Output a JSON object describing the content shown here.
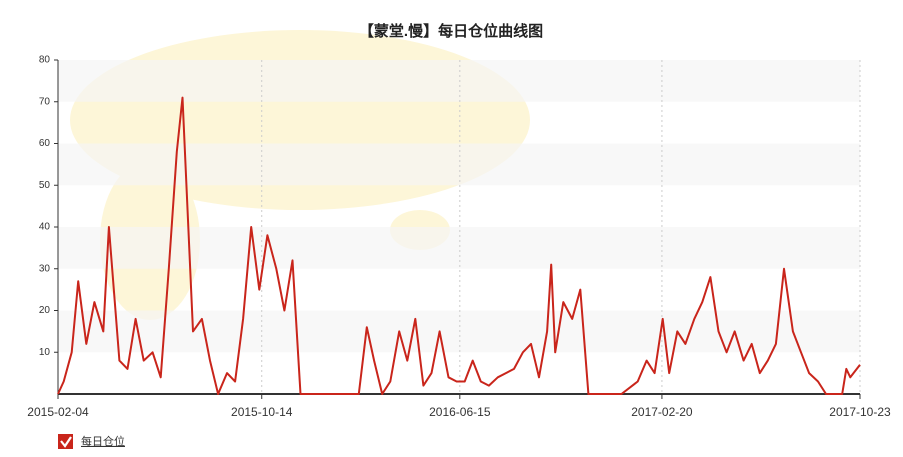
{
  "chart_data": {
    "type": "line",
    "title": "【蒙堂.慢】每日仓位曲线图",
    "x": [
      "2015-02-04",
      "2015-02-11",
      "2015-02-21",
      "2015-03-01",
      "2015-03-11",
      "2015-03-21",
      "2015-04-01",
      "2015-04-08",
      "2015-04-21",
      "2015-05-01",
      "2015-05-11",
      "2015-05-21",
      "2015-06-01",
      "2015-06-11",
      "2015-06-21",
      "2015-07-01",
      "2015-07-08",
      "2015-07-21",
      "2015-08-01",
      "2015-08-11",
      "2015-08-21",
      "2015-09-01",
      "2015-09-11",
      "2015-09-21",
      "2015-10-01",
      "2015-10-11",
      "2015-10-21",
      "2015-11-01",
      "2015-11-11",
      "2015-11-21",
      "2015-12-01",
      "2016-01-01",
      "2016-02-01",
      "2016-02-11",
      "2016-02-21",
      "2016-03-01",
      "2016-03-11",
      "2016-03-21",
      "2016-04-01",
      "2016-04-11",
      "2016-04-21",
      "2016-05-01",
      "2016-05-11",
      "2016-05-21",
      "2016-06-01",
      "2016-06-11",
      "2016-06-21",
      "2016-07-01",
      "2016-07-11",
      "2016-07-21",
      "2016-08-01",
      "2016-08-11",
      "2016-08-21",
      "2016-09-01",
      "2016-09-11",
      "2016-09-21",
      "2016-10-01",
      "2016-10-06",
      "2016-10-11",
      "2016-10-21",
      "2016-11-01",
      "2016-11-11",
      "2016-11-21",
      "2016-12-01",
      "2017-01-01",
      "2017-01-21",
      "2017-02-01",
      "2017-02-11",
      "2017-02-21",
      "2017-03-01",
      "2017-03-11",
      "2017-03-21",
      "2017-04-01",
      "2017-04-11",
      "2017-04-21",
      "2017-05-01",
      "2017-05-11",
      "2017-05-21",
      "2017-06-01",
      "2017-06-11",
      "2017-06-21",
      "2017-07-01",
      "2017-07-11",
      "2017-07-21",
      "2017-08-01",
      "2017-08-11",
      "2017-08-21",
      "2017-09-01",
      "2017-09-11",
      "2017-09-21",
      "2017-10-01",
      "2017-10-06",
      "2017-10-11",
      "2017-10-23"
    ],
    "series": [
      {
        "name": "每日仓位",
        "color": "#c9251b",
        "values": [
          0,
          3,
          10,
          27,
          12,
          22,
          15,
          40,
          8,
          6,
          18,
          8,
          10,
          4,
          30,
          58,
          71,
          15,
          18,
          8,
          0,
          5,
          3,
          18,
          40,
          25,
          38,
          30,
          20,
          32,
          0,
          0,
          0,
          0,
          16,
          8,
          0,
          3,
          15,
          8,
          18,
          2,
          5,
          15,
          4,
          3,
          3,
          8,
          3,
          2,
          4,
          5,
          6,
          10,
          12,
          4,
          15,
          31,
          10,
          22,
          18,
          25,
          0,
          0,
          0,
          3,
          8,
          5,
          18,
          5,
          15,
          12,
          18,
          22,
          28,
          15,
          10,
          15,
          8,
          12,
          5,
          8,
          12,
          30,
          15,
          10,
          5,
          3,
          0,
          0,
          0,
          6,
          4,
          7
        ]
      }
    ],
    "ylim": [
      0,
      80
    ],
    "yticks": [
      10,
      20,
      30,
      40,
      50,
      60,
      70,
      80
    ],
    "xlim": [
      "2015-02-04",
      "2017-10-23"
    ],
    "xticks": [
      "2015-02-04",
      "2015-10-14",
      "2016-06-15",
      "2017-02-20",
      "2017-10-23"
    ],
    "grid": true
  }
}
